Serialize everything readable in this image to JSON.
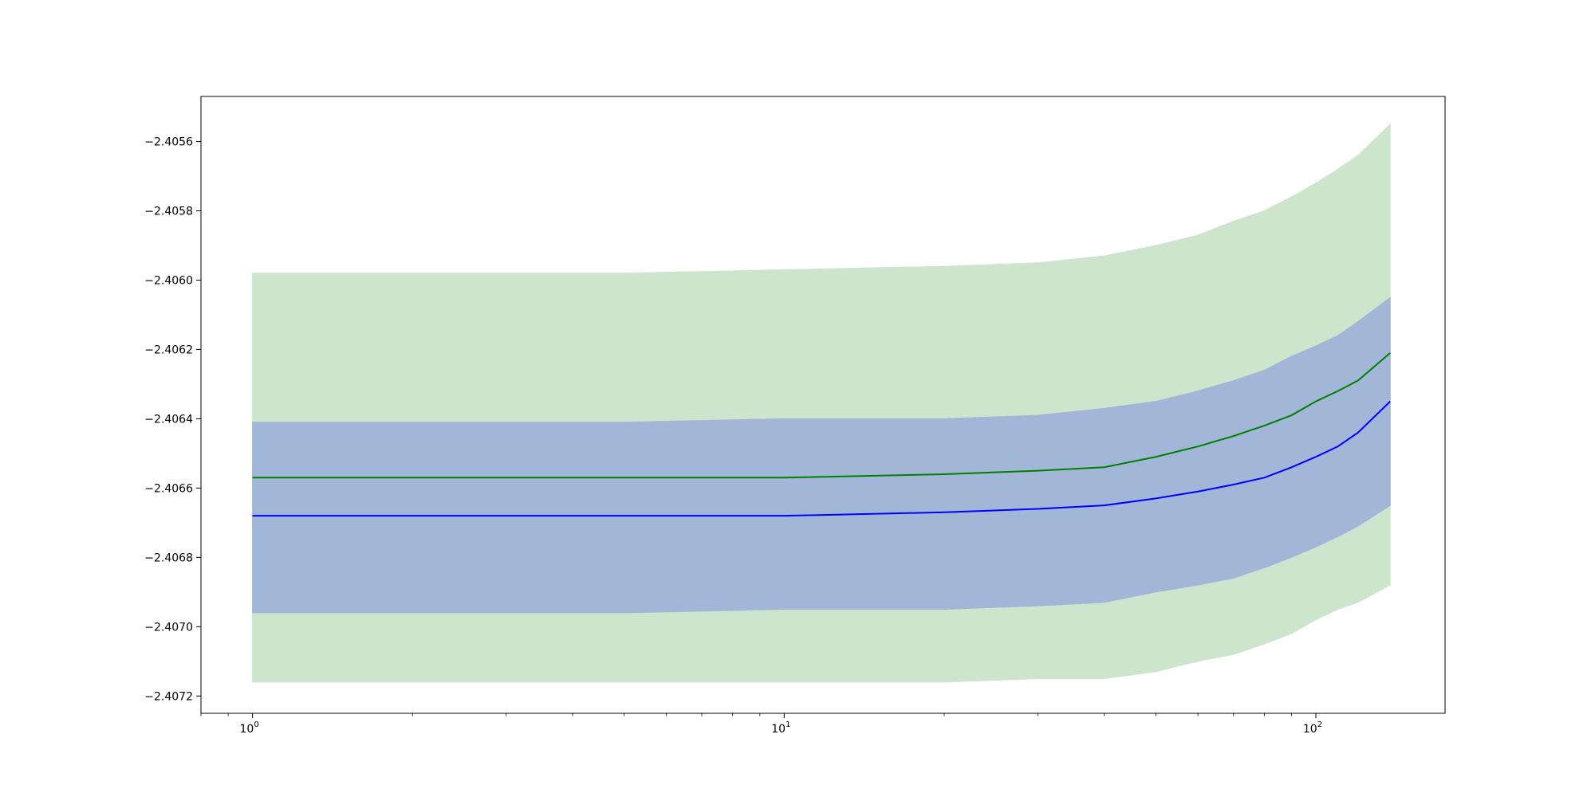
{
  "chart_data": {
    "type": "line",
    "title": "",
    "xlabel": "",
    "ylabel": "",
    "xscale": "log",
    "xlim": [
      0.8,
      175
    ],
    "ylim": [
      -2.40725,
      -2.40547
    ],
    "grid": false,
    "legend": "none",
    "x_ticks": [
      {
        "value": 1,
        "base": "10",
        "exp": "0"
      },
      {
        "value": 10,
        "base": "10",
        "exp": "1"
      },
      {
        "value": 100,
        "base": "10",
        "exp": "2"
      }
    ],
    "y_ticks": [
      {
        "value": -2.4072,
        "label": "−2.4072"
      },
      {
        "value": -2.407,
        "label": "−2.4070"
      },
      {
        "value": -2.4068,
        "label": "−2.4068"
      },
      {
        "value": -2.4066,
        "label": "−2.4066"
      },
      {
        "value": -2.4064,
        "label": "−2.4064"
      },
      {
        "value": -2.4062,
        "label": "−2.4062"
      },
      {
        "value": -2.406,
        "label": "−2.4060"
      },
      {
        "value": -2.4058,
        "label": "−2.4058"
      },
      {
        "value": -2.4056,
        "label": "−2.4056"
      }
    ],
    "x": [
      1,
      2,
      5,
      10,
      20,
      30,
      40,
      50,
      60,
      70,
      80,
      90,
      100,
      110,
      120,
      138
    ],
    "series": [
      {
        "color": "#0000ff",
        "values": [
          -2.40668,
          -2.40668,
          -2.40668,
          -2.40668,
          -2.40667,
          -2.40666,
          -2.40665,
          -2.40663,
          -2.40661,
          -2.40659,
          -2.40657,
          -2.40654,
          -2.40651,
          -2.40648,
          -2.40644,
          -2.40635
        ],
        "band_lower": [
          -2.40696,
          -2.40696,
          -2.40696,
          -2.40695,
          -2.40695,
          -2.40694,
          -2.40693,
          -2.4069,
          -2.40688,
          -2.40686,
          -2.40683,
          -2.4068,
          -2.40677,
          -2.40674,
          -2.40671,
          -2.40665
        ],
        "band_upper": [
          -2.40641,
          -2.40641,
          -2.40641,
          -2.4064,
          -2.4064,
          -2.40639,
          -2.40637,
          -2.40635,
          -2.40632,
          -2.40629,
          -2.40626,
          -2.40622,
          -2.40619,
          -2.40616,
          -2.40612,
          -2.40605
        ],
        "band_color": "#a2b6d7"
      },
      {
        "color": "#008000",
        "values": [
          -2.40657,
          -2.40657,
          -2.40657,
          -2.40657,
          -2.40656,
          -2.40655,
          -2.40654,
          -2.40651,
          -2.40648,
          -2.40645,
          -2.40642,
          -2.40639,
          -2.40635,
          -2.40632,
          -2.40629,
          -2.40621
        ],
        "band_lower": [
          -2.40716,
          -2.40716,
          -2.40716,
          -2.40716,
          -2.40716,
          -2.40715,
          -2.40715,
          -2.40713,
          -2.4071,
          -2.40708,
          -2.40705,
          -2.40702,
          -2.40698,
          -2.40695,
          -2.40693,
          -2.40688
        ],
        "band_upper": [
          -2.40598,
          -2.40598,
          -2.40598,
          -2.40597,
          -2.40596,
          -2.40595,
          -2.40593,
          -2.4059,
          -2.40587,
          -2.40583,
          -2.4058,
          -2.40576,
          -2.40572,
          -2.40568,
          -2.40564,
          -2.40555
        ],
        "band_color": "#cde5cd"
      }
    ]
  }
}
